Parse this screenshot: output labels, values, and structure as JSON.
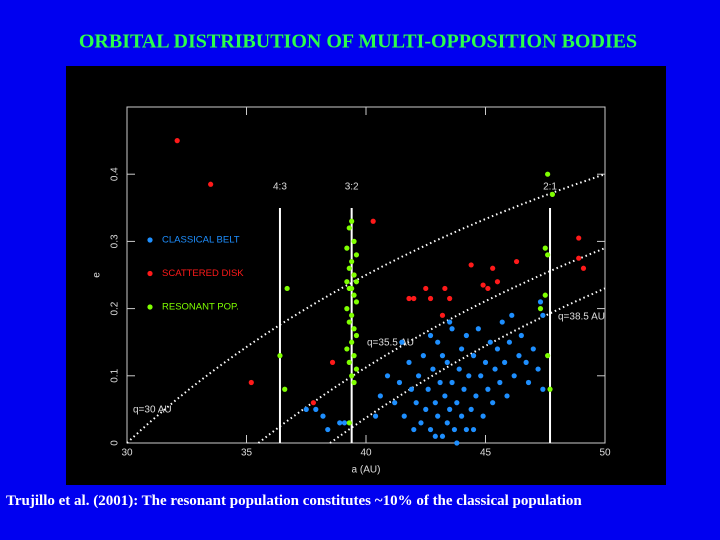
{
  "chart_data": {
    "type": "scatter",
    "title": "ORBITAL DISTRIBUTION OF MULTI-OPPOSITION BODIES",
    "x_label": "a (AU)",
    "y_label": "e",
    "xlim": [
      30,
      50
    ],
    "ylim": [
      0,
      0.5
    ],
    "xticks": [
      30,
      35,
      40,
      45,
      50
    ],
    "yticks": [
      0,
      0.1,
      0.2,
      0.3,
      0.4
    ],
    "resonances": [
      {
        "a": 36.4,
        "label": "4:3"
      },
      {
        "a": 39.4,
        "label": "3:2"
      },
      {
        "a": 47.7,
        "label": "2:1"
      }
    ],
    "perihelion_curves": [
      {
        "q": 30,
        "label": "q=30 AU"
      },
      {
        "q": 35.5,
        "label": "q=35.5 AU"
      },
      {
        "q": 38.5,
        "label": "q=38.5 AU"
      }
    ],
    "series": [
      {
        "name": "CLASSICAL BELT",
        "color": "#1e8fff",
        "x": [
          37.5,
          37.9,
          38.2,
          38.4,
          38.9,
          39.1,
          40.4,
          40.6,
          40.9,
          41.2,
          41.4,
          41.6,
          41.8,
          41.9,
          42.0,
          42.1,
          42.2,
          42.3,
          42.4,
          42.5,
          42.6,
          42.7,
          42.8,
          42.9,
          43.0,
          43.0,
          43.1,
          43.2,
          43.3,
          43.4,
          43.4,
          43.5,
          43.6,
          43.6,
          43.7,
          43.8,
          43.9,
          44.0,
          44.0,
          44.1,
          44.2,
          44.3,
          44.4,
          44.5,
          44.6,
          44.7,
          44.8,
          44.9,
          45.0,
          45.1,
          45.2,
          45.3,
          45.4,
          45.5,
          45.6,
          45.7,
          45.8,
          45.9,
          46.0,
          46.1,
          46.2,
          46.4,
          46.5,
          46.7,
          46.8,
          47.0,
          47.2,
          47.3,
          47.4,
          47.4,
          43.5,
          42.7,
          44.2,
          43.2,
          41.5,
          43.8,
          44.5,
          42.9
        ],
        "values": [
          0.05,
          0.05,
          0.04,
          0.02,
          0.03,
          0.03,
          0.04,
          0.07,
          0.1,
          0.06,
          0.09,
          0.04,
          0.12,
          0.08,
          0.02,
          0.06,
          0.1,
          0.03,
          0.13,
          0.05,
          0.08,
          0.02,
          0.11,
          0.06,
          0.04,
          0.15,
          0.09,
          0.01,
          0.07,
          0.12,
          0.03,
          0.05,
          0.17,
          0.09,
          0.02,
          0.06,
          0.11,
          0.04,
          0.14,
          0.08,
          0.02,
          0.1,
          0.05,
          0.13,
          0.07,
          0.17,
          0.1,
          0.04,
          0.12,
          0.08,
          0.15,
          0.06,
          0.11,
          0.14,
          0.09,
          0.18,
          0.12,
          0.07,
          0.15,
          0.19,
          0.1,
          0.13,
          0.16,
          0.12,
          0.09,
          0.14,
          0.11,
          0.21,
          0.19,
          0.08,
          0.18,
          0.16,
          0.16,
          0.13,
          0.15,
          0.0,
          0.02,
          0.01
        ]
      },
      {
        "name": "SCATTERED DISK",
        "color": "#ff1a1a",
        "x": [
          32.1,
          33.5,
          35.2,
          37.8,
          38.6,
          40.3,
          41.8,
          42.0,
          42.5,
          42.7,
          43.3,
          43.5,
          44.4,
          44.9,
          45.1,
          45.3,
          45.5,
          46.3,
          48.9,
          48.9,
          49.1,
          39.5,
          43.2
        ],
        "values": [
          0.45,
          0.385,
          0.09,
          0.06,
          0.12,
          0.33,
          0.215,
          0.215,
          0.23,
          0.215,
          0.23,
          0.215,
          0.265,
          0.235,
          0.23,
          0.26,
          0.24,
          0.27,
          0.305,
          0.275,
          0.26,
          0.25,
          0.19
        ]
      },
      {
        "name": "RESONANT POP.",
        "color": "#7fff00",
        "x": [
          36.7,
          36.4,
          36.6,
          39.4,
          39.3,
          39.5,
          39.2,
          39.6,
          39.4,
          39.3,
          39.5,
          39.2,
          39.6,
          39.4,
          39.3,
          39.5,
          39.6,
          39.2,
          39.4,
          39.3,
          39.5,
          39.6,
          39.4,
          39.2,
          39.5,
          39.3,
          39.6,
          39.4,
          39.5,
          39.3,
          47.6,
          47.8,
          47.5,
          47.6,
          47.5,
          47.3,
          47.6,
          47.7
        ],
        "values": [
          0.23,
          0.13,
          0.08,
          0.33,
          0.32,
          0.3,
          0.29,
          0.28,
          0.27,
          0.26,
          0.25,
          0.24,
          0.24,
          0.23,
          0.23,
          0.22,
          0.21,
          0.2,
          0.19,
          0.18,
          0.17,
          0.16,
          0.15,
          0.14,
          0.13,
          0.12,
          0.11,
          0.1,
          0.09,
          0.03,
          0.4,
          0.37,
          0.29,
          0.28,
          0.22,
          0.2,
          0.13,
          0.08
        ]
      }
    ],
    "footer": "Trujillo et al. (2001): The resonant population constitutes ~10% of the classical population"
  }
}
